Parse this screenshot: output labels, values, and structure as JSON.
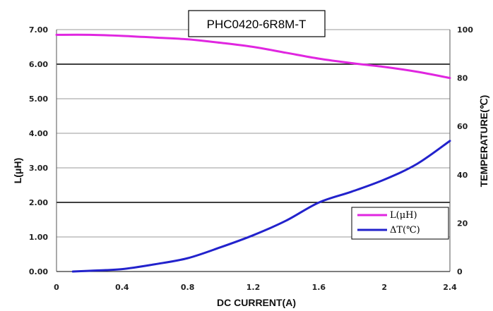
{
  "chart_data": {
    "type": "line",
    "title": "PHC0420-6R8M-T",
    "xlabel": "DC CURRENT(A)",
    "ylabel_left": "L(μH)",
    "ylabel_right": "TEMPERATURE(℃)",
    "xlim": [
      0,
      2.4
    ],
    "ylim_left": [
      0,
      7
    ],
    "ylim_right": [
      0,
      100
    ],
    "x_ticks": [
      "0",
      "0.4",
      "0.8",
      "1.2",
      "1.6",
      "2",
      "2.4"
    ],
    "y_left_ticks": [
      "0.00",
      "1.00",
      "2.00",
      "3.00",
      "4.00",
      "5.00",
      "6.00",
      "7.00"
    ],
    "y_right_ticks": [
      "0",
      "20",
      "40",
      "60",
      "80",
      "100"
    ],
    "grid": true,
    "legend_position": "bottom-right",
    "series": [
      {
        "name": "L(μH)",
        "axis": "left",
        "color": "#e026e0",
        "x": [
          0,
          0.2,
          0.4,
          0.6,
          0.8,
          1.0,
          1.2,
          1.4,
          1.6,
          1.8,
          2.0,
          2.2,
          2.4
        ],
        "y": [
          6.85,
          6.85,
          6.82,
          6.77,
          6.72,
          6.62,
          6.5,
          6.33,
          6.16,
          6.03,
          5.92,
          5.78,
          5.6
        ]
      },
      {
        "name": "ΔT(℃)",
        "axis": "right",
        "color": "#2222cc",
        "x": [
          0.1,
          0.2,
          0.4,
          0.6,
          0.8,
          1.0,
          1.2,
          1.4,
          1.6,
          1.8,
          2.0,
          2.2,
          2.4
        ],
        "y": [
          0,
          0.3,
          1,
          3,
          5.5,
          10,
          15,
          21,
          28.5,
          33,
          38,
          44.5,
          54
        ]
      }
    ]
  }
}
